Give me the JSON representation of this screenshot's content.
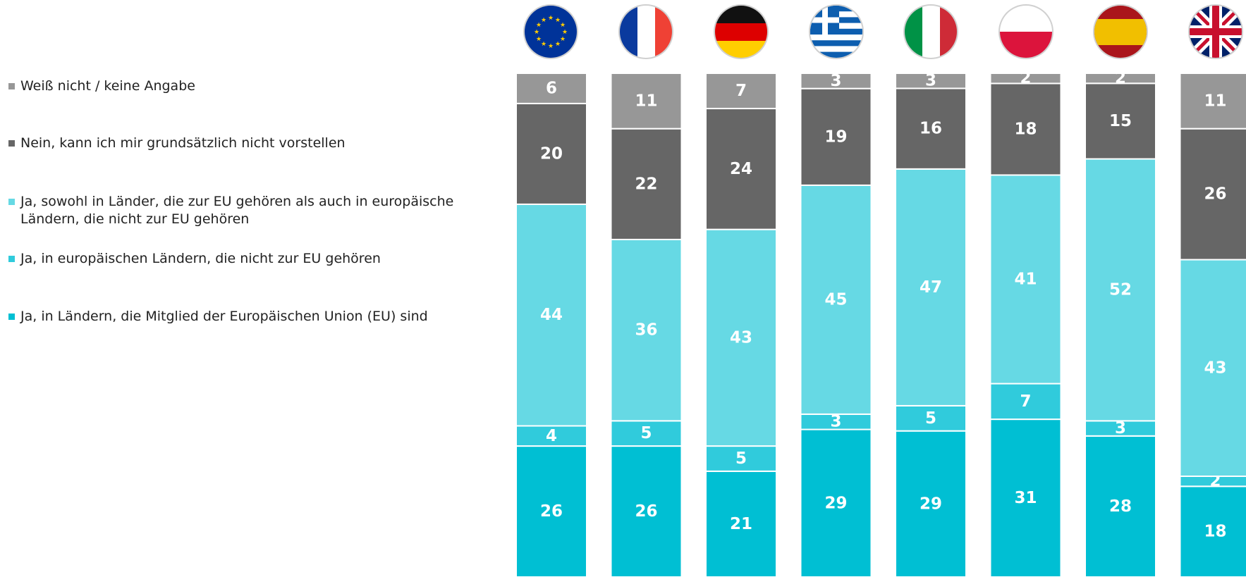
{
  "chart_data": {
    "type": "bar",
    "stacked": true,
    "categories": [
      "EU",
      "Frankreich",
      "Deutschland",
      "Griechenland",
      "Italien",
      "Polen",
      "Spanien",
      "Vereinigtes Königreich"
    ],
    "category_icons": [
      "eu-flag-icon",
      "france-flag-icon",
      "germany-flag-icon",
      "greece-flag-icon",
      "italy-flag-icon",
      "poland-flag-icon",
      "spain-flag-icon",
      "uk-flag-icon"
    ],
    "series": [
      {
        "name": "Ja, in Ländern, die Mitglied der Europäischen Union (EU) sind",
        "color": "#00BFD3",
        "values": [
          26,
          26,
          21,
          29,
          29,
          31,
          28,
          18
        ]
      },
      {
        "name": "Ja, in europäischen Ländern, die nicht zur EU gehören",
        "color": "#30CBDC",
        "values": [
          4,
          5,
          5,
          3,
          5,
          7,
          3,
          2
        ]
      },
      {
        "name": "Ja, sowohl in Länder, die zur EU gehören als auch in europäische Ländern, die nicht zur EU gehören",
        "color": "#66D9E4",
        "values": [
          44,
          36,
          43,
          45,
          47,
          41,
          52,
          43
        ]
      },
      {
        "name": "Nein, kann ich mir grundsätzlich nicht vorstellen",
        "color": "#666666",
        "values": [
          20,
          22,
          24,
          19,
          16,
          18,
          15,
          26
        ]
      },
      {
        "name": "Weiß nicht / keine Angabe",
        "color": "#979797",
        "values": [
          6,
          11,
          7,
          3,
          3,
          2,
          2,
          11
        ]
      }
    ],
    "legend_order": [
      4,
      3,
      2,
      1,
      0
    ],
    "legend_position": "left",
    "ylim": [
      0,
      100
    ],
    "grid": false
  }
}
